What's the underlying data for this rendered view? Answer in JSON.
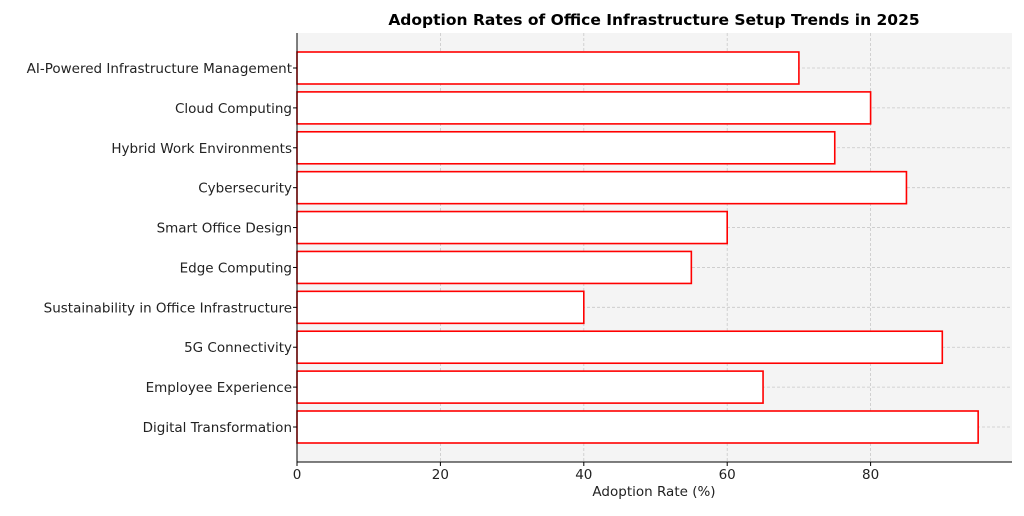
{
  "chart_data": {
    "type": "bar",
    "orientation": "horizontal",
    "title": "Adoption Rates of Office Infrastructure Setup Trends in 2025",
    "xlabel": "Adoption Rate (%)",
    "ylabel": "",
    "categories": [
      "AI-Powered Infrastructure Management",
      "Cloud Computing",
      "Hybrid Work Environments",
      "Cybersecurity",
      "Smart Office Design",
      "Edge Computing",
      "Sustainability in Office Infrastructure",
      "5G Connectivity",
      "Employee Experience",
      "Digital Transformation"
    ],
    "values": [
      70,
      80,
      75,
      85,
      60,
      55,
      40,
      90,
      65,
      95
    ],
    "xlim": [
      0,
      100
    ],
    "xticks": [
      "0",
      "20",
      "40",
      "60",
      "80"
    ],
    "grid": true,
    "legend": "none",
    "colors": {
      "bar_edge": "#ff0000",
      "bar_fill": "#ffffff",
      "plot_background": "#f4f4f4",
      "grid": "#c8c8c8",
      "axis": "#000000"
    }
  }
}
